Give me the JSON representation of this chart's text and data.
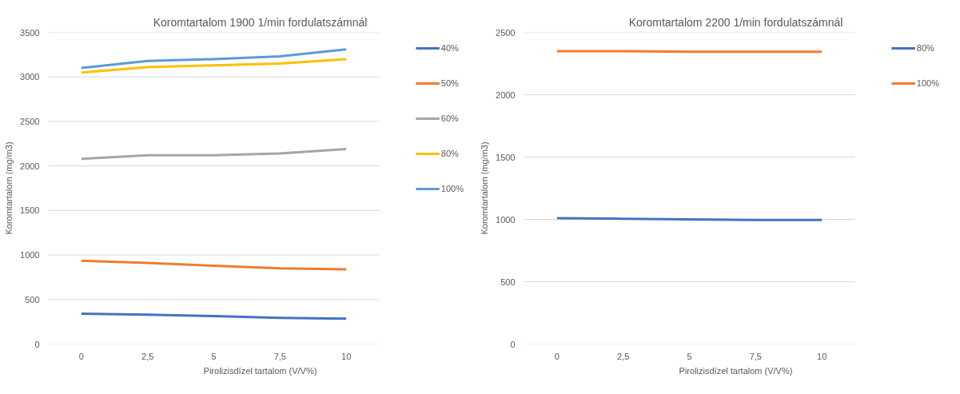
{
  "chart_data": [
    {
      "type": "line",
      "title": "Koromtartalom 1900 1/min fordulatszámnál",
      "xlabel": "Pirolizisdízel tartalom (V/V%)",
      "ylabel": "Koromtartalom (mg/m3)",
      "categories": [
        "0",
        "2,5",
        "5",
        "7,5",
        "10"
      ],
      "ylim": [
        0,
        3500
      ],
      "yticks": [
        0,
        500,
        1000,
        1500,
        2000,
        2500,
        3000,
        3500
      ],
      "grid": "y",
      "legend": "right",
      "series": [
        {
          "name": "40%",
          "color": "#4472c4",
          "values": [
            340,
            330,
            315,
            295,
            285
          ]
        },
        {
          "name": "50%",
          "color": "#ed7d31",
          "values": [
            935,
            910,
            880,
            850,
            840
          ]
        },
        {
          "name": "60%",
          "color": "#a5a5a5",
          "values": [
            2080,
            2120,
            2120,
            2140,
            2190
          ]
        },
        {
          "name": "80%",
          "color": "#ffc000",
          "values": [
            3050,
            3110,
            3130,
            3150,
            3200
          ]
        },
        {
          "name": "100%",
          "color": "#5b9bd5",
          "values": [
            3100,
            3180,
            3200,
            3230,
            3310
          ]
        }
      ]
    },
    {
      "type": "line",
      "title": "Koromtartalom 2200 1/min fordulatszámnál",
      "xlabel": "Pirolizisdízel tartalom (V/V%)",
      "ylabel": "Koromtartalom (mg/m3)",
      "categories": [
        "0",
        "2,5",
        "5",
        "7,5",
        "10"
      ],
      "ylim": [
        0,
        2500
      ],
      "yticks": [
        0,
        500,
        1000,
        1500,
        2000,
        2500
      ],
      "grid": "y",
      "legend": "right",
      "series": [
        {
          "name": "80%",
          "color": "#4472c4",
          "values": [
            1010,
            1005,
            1000,
            995,
            995
          ]
        },
        {
          "name": "100%",
          "color": "#ed7d31",
          "values": [
            2350,
            2350,
            2345,
            2345,
            2345
          ]
        }
      ]
    }
  ]
}
